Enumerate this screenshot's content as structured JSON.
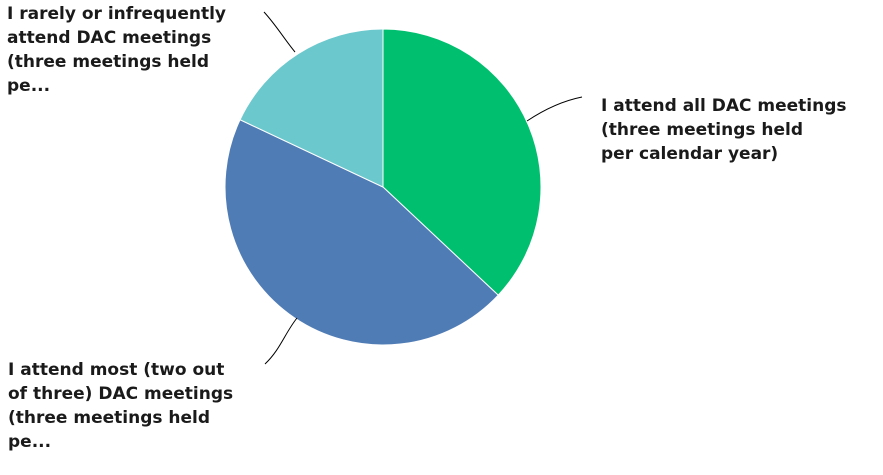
{
  "chart_data": {
    "type": "pie",
    "title": "",
    "start_angle_deg": 0,
    "direction": "clockwise",
    "slices": [
      {
        "label": "I attend all DAC meetings\n(three meetings held\nper calendar year)",
        "value": 37,
        "color": "#00bf6f"
      },
      {
        "label": "I attend most (two out\nof three) DAC meetings\n(three meetings held\npe...",
        "value": 45,
        "color": "#507cb6"
      },
      {
        "label": "I rarely or infrequently\nattend DAC meetings\n(three meetings held\npe...",
        "value": 18,
        "color": "#6bc8cd"
      }
    ],
    "legend": "none",
    "grid": false
  }
}
